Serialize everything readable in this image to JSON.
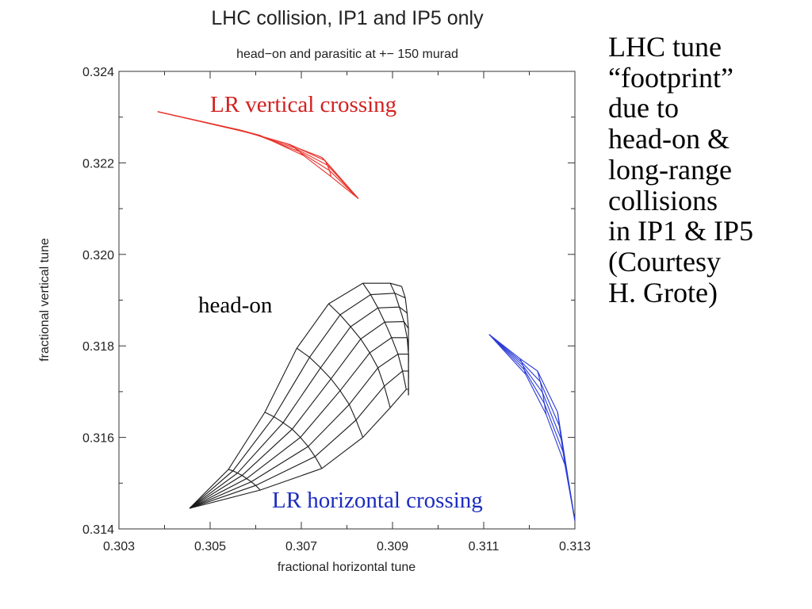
{
  "chart_data": {
    "type": "line",
    "title": "LHC collision, IP1 and IP5 only",
    "subtitle": "head−on and parasitic at +− 150 murad",
    "xlabel": "fractional horizontal tune",
    "ylabel": "fractional vertical tune",
    "xlim": [
      0.303,
      0.313
    ],
    "ylim": [
      0.314,
      0.324
    ],
    "x_ticks": [
      "0.303",
      "0.305",
      "0.307",
      "0.309",
      "0.311",
      "0.313"
    ],
    "y_ticks": [
      "0.314",
      "0.316",
      "0.318",
      "0.320",
      "0.322",
      "0.324"
    ],
    "grid": false,
    "legend": "none",
    "annotations": {
      "vertical": "LR vertical crossing",
      "headon": "head-on",
      "horizontal": "LR horizontal crossing"
    },
    "colors": {
      "vertical": "#e8312a",
      "headon": "#1a1a1a",
      "horizontal": "#2a3bd6",
      "vertical_label": "#d42020",
      "horizontal_label": "#1c2cc0"
    },
    "series": [
      {
        "key": "vertical",
        "rows": [
          [
            [
              0.30385,
              0.32312
            ],
            [
              0.3055,
              0.32275
            ],
            [
              0.30665,
              0.32243
            ],
            [
              0.30745,
              0.32212
            ],
            [
              0.30825,
              0.32122
            ]
          ],
          [
            [
              0.30385,
              0.32312
            ],
            [
              0.30565,
              0.32272
            ],
            [
              0.30675,
              0.3224
            ],
            [
              0.30752,
              0.32205
            ],
            [
              0.30825,
              0.32122
            ]
          ],
          [
            [
              0.30385,
              0.32312
            ],
            [
              0.3058,
              0.32268
            ],
            [
              0.30685,
              0.32233
            ],
            [
              0.30757,
              0.32195
            ],
            [
              0.30825,
              0.32122
            ]
          ],
          [
            [
              0.30385,
              0.32312
            ],
            [
              0.30595,
              0.32264
            ],
            [
              0.30695,
              0.32225
            ],
            [
              0.30762,
              0.32183
            ],
            [
              0.30825,
              0.32122
            ]
          ],
          [
            [
              0.30385,
              0.32312
            ],
            [
              0.3061,
              0.3226
            ],
            [
              0.30705,
              0.32216
            ],
            [
              0.30765,
              0.3217
            ],
            [
              0.30825,
              0.32122
            ]
          ]
        ]
      },
      {
        "key": "headon",
        "rows": [
          [
            [
              0.30455,
              0.31445
            ],
            [
              0.3054,
              0.3153
            ],
            [
              0.3062,
              0.31655
            ],
            [
              0.3069,
              0.31795
            ],
            [
              0.3076,
              0.31892
            ],
            [
              0.30835,
              0.31937
            ],
            [
              0.30895,
              0.31937
            ],
            [
              0.3092,
              0.3193
            ]
          ],
          [
            [
              0.30455,
              0.31445
            ],
            [
              0.3055,
              0.31527
            ],
            [
              0.3064,
              0.31645
            ],
            [
              0.30718,
              0.31775
            ],
            [
              0.30785,
              0.31868
            ],
            [
              0.30852,
              0.31912
            ],
            [
              0.30905,
              0.31915
            ],
            [
              0.30928,
              0.31905
            ]
          ],
          [
            [
              0.30455,
              0.31445
            ],
            [
              0.3056,
              0.31522
            ],
            [
              0.3066,
              0.31632
            ],
            [
              0.30742,
              0.31752
            ],
            [
              0.30808,
              0.31842
            ],
            [
              0.30868,
              0.31883
            ],
            [
              0.30915,
              0.31885
            ],
            [
              0.30932,
              0.31872
            ]
          ],
          [
            [
              0.30455,
              0.31445
            ],
            [
              0.3057,
              0.31517
            ],
            [
              0.3068,
              0.31618
            ],
            [
              0.30765,
              0.31728
            ],
            [
              0.3083,
              0.31815
            ],
            [
              0.30883,
              0.31852
            ],
            [
              0.30925,
              0.31853
            ],
            [
              0.30935,
              0.31838
            ]
          ],
          [
            [
              0.30455,
              0.31445
            ],
            [
              0.3058,
              0.3151
            ],
            [
              0.30698,
              0.316
            ],
            [
              0.30785,
              0.31702
            ],
            [
              0.3085,
              0.31785
            ],
            [
              0.30898,
              0.31818
            ],
            [
              0.30932,
              0.31818
            ],
            [
              0.30935,
              0.31802
            ]
          ],
          [
            [
              0.30455,
              0.31445
            ],
            [
              0.3059,
              0.31503
            ],
            [
              0.30715,
              0.3158
            ],
            [
              0.30805,
              0.31672
            ],
            [
              0.30868,
              0.31752
            ],
            [
              0.30912,
              0.31782
            ],
            [
              0.30935,
              0.31782
            ],
            [
              0.30935,
              0.31765
            ]
          ],
          [
            [
              0.30455,
              0.31445
            ],
            [
              0.306,
              0.31495
            ],
            [
              0.3073,
              0.31558
            ],
            [
              0.3082,
              0.31638
            ],
            [
              0.30882,
              0.31712
            ],
            [
              0.30922,
              0.31745
            ],
            [
              0.30935,
              0.31745
            ],
            [
              0.30935,
              0.31728
            ]
          ],
          [
            [
              0.30455,
              0.31445
            ],
            [
              0.3061,
              0.31485
            ],
            [
              0.30745,
              0.31532
            ],
            [
              0.30835,
              0.316
            ],
            [
              0.30895,
              0.31665
            ],
            [
              0.3093,
              0.31705
            ],
            [
              0.30935,
              0.31705
            ],
            [
              0.30935,
              0.31692
            ]
          ]
        ]
      },
      {
        "key": "horizontal",
        "rows": [
          [
            [
              0.31112,
              0.31825
            ],
            [
              0.3118,
              0.31772
            ],
            [
              0.31218,
              0.31745
            ],
            [
              0.31262,
              0.31655
            ],
            [
              0.313,
              0.31418
            ]
          ],
          [
            [
              0.31112,
              0.31825
            ],
            [
              0.31183,
              0.31765
            ],
            [
              0.31224,
              0.31722
            ],
            [
              0.31266,
              0.31625
            ],
            [
              0.313,
              0.31418
            ]
          ],
          [
            [
              0.31112,
              0.31825
            ],
            [
              0.31186,
              0.31757
            ],
            [
              0.31229,
              0.31698
            ],
            [
              0.3127,
              0.31596
            ],
            [
              0.313,
              0.31418
            ]
          ],
          [
            [
              0.31112,
              0.31825
            ],
            [
              0.31189,
              0.31748
            ],
            [
              0.31233,
              0.31674
            ],
            [
              0.31274,
              0.31568
            ],
            [
              0.313,
              0.31418
            ]
          ],
          [
            [
              0.31112,
              0.31825
            ],
            [
              0.31192,
              0.31738
            ],
            [
              0.31237,
              0.3165
            ],
            [
              0.31278,
              0.3154
            ],
            [
              0.313,
              0.31418
            ]
          ]
        ]
      }
    ]
  },
  "side_note": {
    "lines": [
      "LHC tune",
      "“footprint”",
      "due to",
      "head-on &",
      "long-range",
      "collisions",
      "in IP1 & IP5",
      "(Courtesy",
      "H. Grote)"
    ]
  }
}
